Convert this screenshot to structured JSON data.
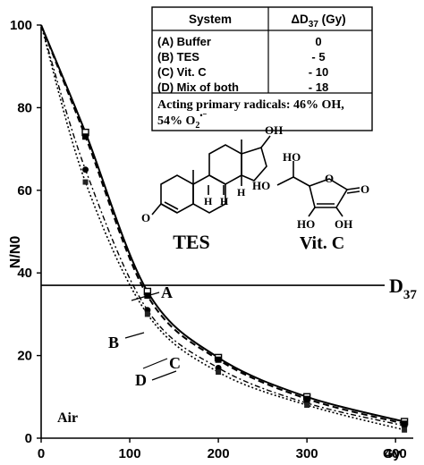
{
  "chart_data": {
    "type": "line",
    "xlabel": "Gy",
    "ylabel": "N/N0",
    "xlim": [
      0,
      420
    ],
    "ylim": [
      0,
      100
    ],
    "x_ticks": [
      0,
      100,
      200,
      300,
      400
    ],
    "y_ticks": [
      0,
      20,
      40,
      60,
      80,
      100
    ],
    "reference_line": {
      "y": 37,
      "label": "D37"
    },
    "series": [
      {
        "name": "A",
        "style": "solid",
        "x": [
          0,
          50,
          120,
          200,
          300,
          410
        ],
        "y": [
          100,
          74,
          35.5,
          19.5,
          10,
          4
        ]
      },
      {
        "name": "B",
        "style": "dashed",
        "x": [
          0,
          50,
          120,
          200,
          300,
          410
        ],
        "y": [
          100,
          73,
          34.5,
          19,
          9.5,
          3.5
        ]
      },
      {
        "name": "C",
        "style": "dash-dot",
        "x": [
          0,
          50,
          120,
          200,
          300,
          410
        ],
        "y": [
          100,
          65,
          31,
          17,
          8.5,
          3
        ]
      },
      {
        "name": "D",
        "style": "dotted",
        "x": [
          0,
          50,
          120,
          200,
          300,
          410
        ],
        "y": [
          100,
          62,
          30,
          16,
          8,
          2
        ]
      }
    ],
    "curve_labels": {
      "A": "A",
      "B": "B",
      "C": "C",
      "D": "D"
    },
    "corner_label": "Air",
    "annotation_labels": {
      "tes": "TES",
      "vitc": "Vit. C",
      "d37_main": "D",
      "d37_sub": "37"
    },
    "table": {
      "header_system": "System",
      "header_delta_prefix": "ΔD",
      "header_delta_sub": "37",
      "header_delta_unit": " (Gy)",
      "rows": [
        {
          "system": "(A) Buffer",
          "delta": "0"
        },
        {
          "system": "(B) TES",
          "delta": "- 5"
        },
        {
          "system": "(C) Vit. C",
          "delta": "- 10"
        },
        {
          "system": "(D) Mix of both",
          "delta": "- 18"
        }
      ],
      "footnote_line1": "Acting primary radicals: 46% OH,",
      "footnote_line2_pre": "54% O",
      "footnote_line2_sub": "2",
      "footnote_line2_sup": "•⁻"
    },
    "tes_oh": "OH",
    "tes_h1": "H",
    "tes_h2": "H",
    "tes_h3": "H",
    "tes_o": "O",
    "vitc_oh_left": "HO",
    "vitc_oh_top": "HO",
    "vitc_ring_o": "O",
    "vitc_co": "O",
    "vitc_oh_bl": "HO",
    "vitc_oh_br": "OH"
  }
}
